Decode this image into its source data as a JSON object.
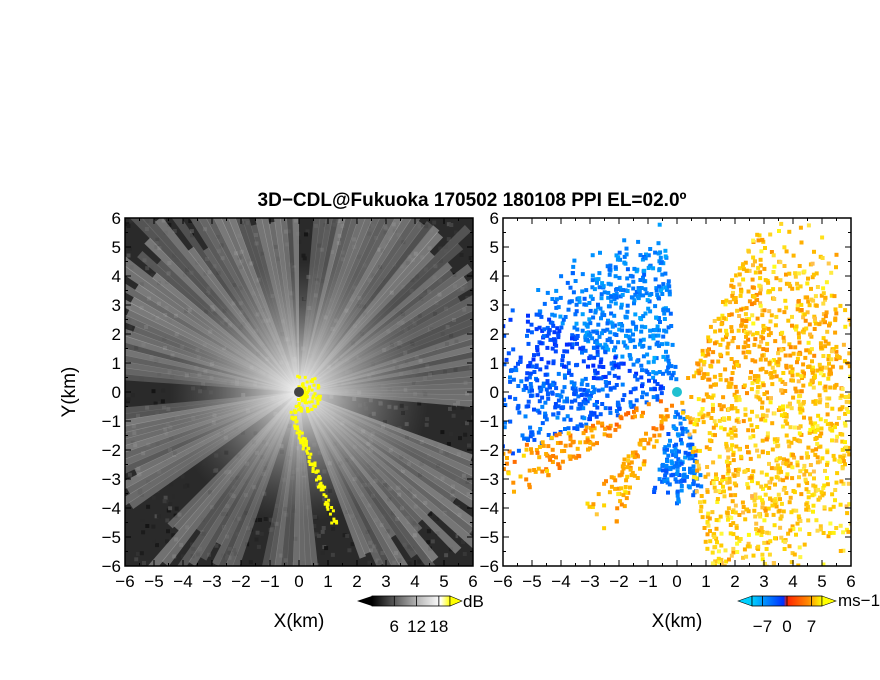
{
  "title": "3D−CDL@Fukuoka 170502 180108 PPI EL=02.0º",
  "chart_data": [
    {
      "type": "heatmap",
      "panel": "reflectivity",
      "xlabel": "X(km)",
      "ylabel": "Y(km)",
      "xlim": [
        -6,
        6
      ],
      "ylim": [
        -6,
        6
      ],
      "xticks": [
        "−6",
        "−5",
        "−4",
        "−3",
        "−2",
        "−1",
        "0",
        "1",
        "2",
        "3",
        "4",
        "5",
        "6"
      ],
      "yticks": [
        "6",
        "5",
        "4",
        "3",
        "2",
        "1",
        "0",
        "−1",
        "−2",
        "−3",
        "−4",
        "−5",
        "−6"
      ],
      "colorbar": {
        "unit": "dB",
        "tick_labels": [
          "6",
          "12",
          "18"
        ],
        "tick_values": [
          6,
          12,
          18
        ],
        "range": [
          0,
          21
        ],
        "colors": [
          "#000000",
          "#ffffff",
          "#ffff00"
        ]
      },
      "background_color": "#2a2a2a",
      "sectors_deg": [
        [
          90,
          175
        ],
        [
          185,
          215
        ],
        [
          225,
          250
        ],
        [
          258,
          275
        ],
        [
          290,
          340
        ],
        [
          355,
          445
        ]
      ],
      "clutter_color": "#ffff00"
    },
    {
      "type": "heatmap",
      "panel": "doppler velocity",
      "xlabel": "X(km)",
      "ylabel": "",
      "xlim": [
        -6,
        6
      ],
      "ylim": [
        -6,
        6
      ],
      "xticks": [
        "−6",
        "−5",
        "−4",
        "−3",
        "−2",
        "−1",
        "0",
        "1",
        "2",
        "3",
        "4",
        "5",
        "6"
      ],
      "yticks": [
        "6",
        "5",
        "4",
        "3",
        "2",
        "1",
        "0",
        "−1",
        "−2",
        "−3",
        "−4",
        "−5",
        "−6"
      ],
      "colorbar": {
        "unit": "ms−1",
        "tick_labels": [
          "−7",
          "0",
          "7"
        ],
        "tick_values": [
          -7,
          0,
          7
        ],
        "range": [
          -10,
          10
        ],
        "colors": [
          "#00bfff",
          "#0044ff",
          "#ff3300",
          "#ff9900",
          "#ffff00"
        ]
      },
      "radar_marker_color": "#20c0d0"
    }
  ]
}
